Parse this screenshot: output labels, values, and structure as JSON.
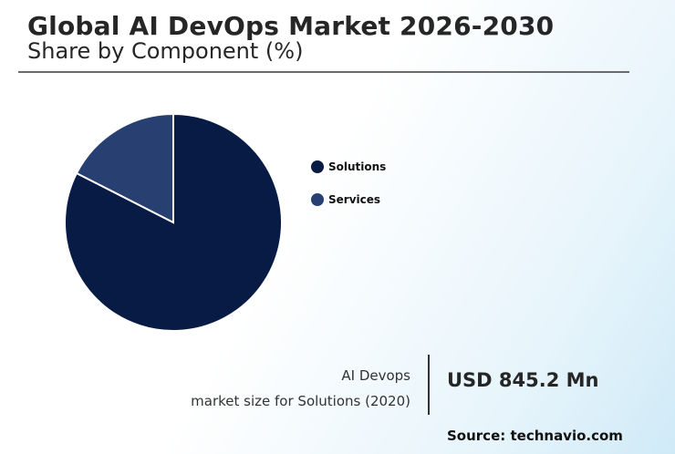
{
  "header": {
    "title": "Global AI DevOps Market 2026-2030",
    "subtitle": "Share by Component (%)"
  },
  "chart_data": {
    "type": "pie",
    "categories": [
      "Solutions",
      "Services"
    ],
    "values": [
      82.5,
      17.5
    ],
    "colors": [
      "#071b45",
      "#283f72"
    ],
    "legend_position": "right"
  },
  "callout": {
    "line1": "AI Devops",
    "line2": "market size for Solutions (2020)",
    "value": "USD 845.2 Mn"
  },
  "footer": {
    "source": "Source: technavio.com"
  }
}
